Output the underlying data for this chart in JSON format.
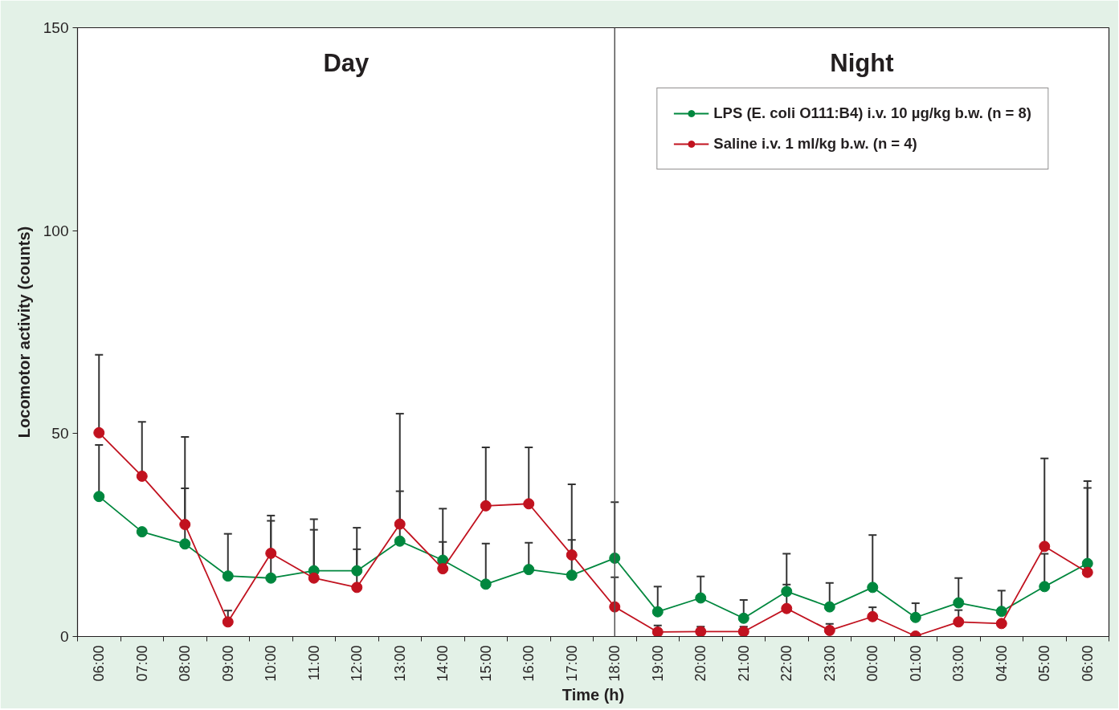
{
  "chart_data": {
    "type": "line",
    "xlabel": "Time (h)",
    "ylabel": "Locomotor activity (counts)",
    "categories": [
      "06:00",
      "07:00",
      "08:00",
      "09:00",
      "10:00",
      "11:00",
      "12:00",
      "13:00",
      "14:00",
      "15:00",
      "16:00",
      "17:00",
      "18:00",
      "19:00",
      "20:00",
      "21:00",
      "22:00",
      "23:00",
      "00:00",
      "01:00",
      "03:00",
      "04:00",
      "05:00",
      "06:00"
    ],
    "series": [
      {
        "name": "LPS (E. coli O111:B4) i.v. 10 µg/kg b.w. (n = 8)",
        "color": "#00873e",
        "values": [
          34.5,
          25.8,
          22.8,
          14.9,
          14.4,
          16.2,
          16.2,
          23.5,
          18.8,
          12.9,
          16.5,
          15.1,
          19.3,
          6.1,
          9.5,
          4.5,
          11.1,
          7.3,
          12.1,
          4.7,
          8.3,
          6.2,
          12.3,
          18.0
        ],
        "errors": [
          [
            34.5,
            47.2
          ],
          null,
          [
            22.8,
            36.5
          ],
          [
            14.9,
            25.3
          ],
          [
            14.4,
            28.5
          ],
          [
            16.2,
            26.3
          ],
          [
            16.2,
            21.5
          ],
          [
            23.5,
            35.8
          ],
          [
            18.8,
            23.3
          ],
          [
            12.9,
            22.9
          ],
          [
            16.5,
            23.1
          ],
          [
            15.1,
            23.8
          ],
          [
            19.3,
            33.1
          ],
          [
            6.1,
            12.3
          ],
          [
            9.5,
            14.8
          ],
          [
            4.5,
            9.0
          ],
          [
            11.1,
            20.4
          ],
          [
            7.3,
            13.2
          ],
          [
            12.1,
            25.0
          ],
          [
            4.7,
            8.2
          ],
          [
            8.3,
            14.4
          ],
          [
            6.2,
            11.3
          ],
          [
            12.3,
            20.4
          ],
          [
            18.0,
            38.3
          ]
        ]
      },
      {
        "name": "Saline i.v. 1 ml/kg b.w. (n = 4)",
        "color": "#c1121f",
        "values": [
          50.2,
          39.5,
          27.6,
          3.6,
          20.5,
          14.4,
          12.1,
          27.7,
          16.7,
          32.2,
          32.7,
          20.1,
          7.3,
          1.1,
          1.2,
          1.2,
          6.9,
          1.5,
          4.9,
          0.1,
          3.6,
          3.2,
          22.2,
          15.8
        ],
        "errors": [
          [
            50.2,
            69.4
          ],
          [
            39.5,
            52.9
          ],
          [
            27.6,
            49.2
          ],
          [
            3.6,
            6.4
          ],
          [
            20.5,
            29.8
          ],
          [
            14.4,
            28.9
          ],
          [
            12.1,
            26.8
          ],
          [
            27.7,
            54.9
          ],
          [
            16.7,
            31.5
          ],
          [
            32.2,
            46.6
          ],
          [
            32.7,
            46.6
          ],
          [
            20.1,
            37.5
          ],
          [
            7.3,
            14.6
          ],
          [
            1.1,
            2.7
          ],
          [
            1.2,
            2.4
          ],
          [
            1.2,
            2.4
          ],
          [
            6.9,
            12.8
          ],
          [
            1.5,
            3.1
          ],
          [
            4.9,
            7.2
          ],
          null,
          [
            3.6,
            6.5
          ],
          null,
          [
            22.2,
            43.9
          ],
          [
            15.8,
            36.6
          ]
        ]
      }
    ],
    "ylim": [
      0,
      150
    ],
    "yticks": [
      0,
      50,
      100,
      150
    ],
    "ref_lines": [
      {
        "axis": "x",
        "value": "18:00",
        "color": "#555555"
      }
    ],
    "annotations": [
      "Day",
      "Night"
    ],
    "grid": false,
    "legend": "top right",
    "marker": "circle",
    "line_style": "solid"
  }
}
